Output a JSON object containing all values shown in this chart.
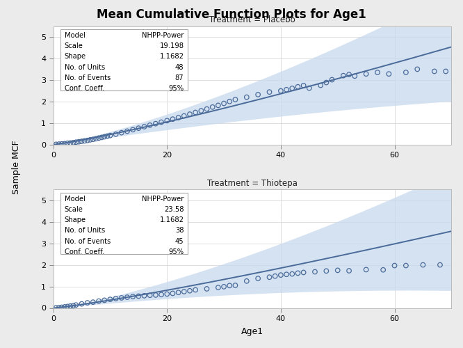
{
  "title": "Mean Cumulative Function Plots for Age1",
  "xlabel": "Age1",
  "ylabel": "Sample MCF",
  "outer_bg": "#ebebeb",
  "panel_bg": "#ffffff",
  "panel1_title": "Treatment = Placebo",
  "panel2_title": "Treatment = Thiotepa",
  "panel1_info_keys": [
    "Model",
    "Scale",
    "Shape",
    "No. of Units",
    "No. of Events",
    "Conf. Coeff."
  ],
  "panel1_info_vals": [
    "NHPP-Power",
    "19.198",
    "1.1682",
    "48",
    "87",
    "95%"
  ],
  "panel2_info_keys": [
    "Model",
    "Scale",
    "Shape",
    "No. of Units",
    "No. of Events",
    "Conf. Coeff."
  ],
  "panel2_info_vals": [
    "NHPP-Power",
    "23.58",
    "1.1682",
    "38",
    "45",
    "95%"
  ],
  "line_color": "#4a6b99",
  "ci_color": "#c8d9ee",
  "dot_color": "#4a6b99",
  "dot_edge_color": "#4a6b99",
  "xlim": [
    0,
    70
  ],
  "ylim": [
    0,
    5.5
  ],
  "yticks": [
    0,
    1,
    2,
    3,
    4,
    5
  ],
  "xticks": [
    0,
    20,
    40,
    60
  ],
  "panel1_scale": 19.198,
  "panel1_shape": 1.1682,
  "panel2_scale": 23.58,
  "panel2_shape": 1.1682,
  "placebo_dots_x": [
    0.5,
    1.0,
    1.5,
    2.0,
    2.5,
    3.0,
    3.5,
    4.0,
    4.5,
    5.0,
    5.5,
    6.0,
    6.5,
    7.0,
    7.5,
    8.0,
    8.5,
    9.0,
    9.5,
    10.0,
    11.0,
    12.0,
    13.0,
    14.0,
    15.0,
    16.0,
    17.0,
    18.0,
    19.0,
    20.0,
    21.0,
    22.0,
    23.0,
    24.0,
    25.0,
    26.0,
    27.0,
    28.0,
    29.0,
    30.0,
    31.0,
    32.0,
    34.0,
    36.0,
    38.0,
    40.0,
    41.0,
    42.0,
    43.0,
    44.0,
    45.0,
    47.0,
    48.0,
    49.0,
    51.0,
    52.0,
    53.0,
    55.0,
    57.0,
    59.0,
    62.0,
    64.0,
    67.0,
    69.0
  ],
  "placebo_dots_y": [
    0.01,
    0.02,
    0.03,
    0.04,
    0.06,
    0.07,
    0.09,
    0.11,
    0.13,
    0.15,
    0.17,
    0.19,
    0.22,
    0.24,
    0.27,
    0.3,
    0.33,
    0.36,
    0.39,
    0.42,
    0.48,
    0.55,
    0.62,
    0.69,
    0.76,
    0.83,
    0.9,
    0.97,
    1.04,
    1.11,
    1.18,
    1.25,
    1.33,
    1.41,
    1.49,
    1.57,
    1.65,
    1.74,
    1.82,
    1.91,
    2.0,
    2.09,
    2.2,
    2.32,
    2.44,
    2.49,
    2.55,
    2.61,
    2.68,
    2.74,
    2.62,
    2.75,
    2.88,
    3.01,
    3.2,
    3.25,
    3.18,
    3.28,
    3.35,
    3.28,
    3.35,
    3.5,
    3.4,
    3.4
  ],
  "thiotepa_dots_x": [
    0.5,
    1.0,
    1.5,
    2.0,
    2.5,
    3.0,
    3.5,
    4.0,
    5.0,
    6.0,
    7.0,
    8.0,
    9.0,
    10.0,
    11.0,
    12.0,
    13.0,
    14.0,
    15.0,
    16.0,
    17.0,
    18.0,
    19.0,
    20.0,
    21.0,
    22.0,
    23.0,
    24.0,
    25.0,
    27.0,
    29.0,
    30.0,
    31.0,
    32.0,
    34.0,
    36.0,
    38.0,
    39.0,
    40.0,
    41.0,
    42.0,
    43.0,
    44.0,
    46.0,
    48.0,
    50.0,
    52.0,
    55.0,
    58.0,
    60.0,
    62.0,
    65.0,
    68.0
  ],
  "thiotepa_dots_y": [
    0.01,
    0.02,
    0.03,
    0.05,
    0.07,
    0.09,
    0.11,
    0.14,
    0.19,
    0.24,
    0.27,
    0.32,
    0.36,
    0.4,
    0.44,
    0.47,
    0.5,
    0.53,
    0.55,
    0.57,
    0.59,
    0.6,
    0.62,
    0.65,
    0.68,
    0.72,
    0.76,
    0.8,
    0.84,
    0.89,
    0.95,
    0.99,
    1.04,
    1.05,
    1.25,
    1.37,
    1.43,
    1.48,
    1.53,
    1.56,
    1.58,
    1.62,
    1.65,
    1.68,
    1.72,
    1.75,
    1.73,
    1.78,
    1.77,
    1.97,
    1.97,
    2.0,
    2.0
  ]
}
